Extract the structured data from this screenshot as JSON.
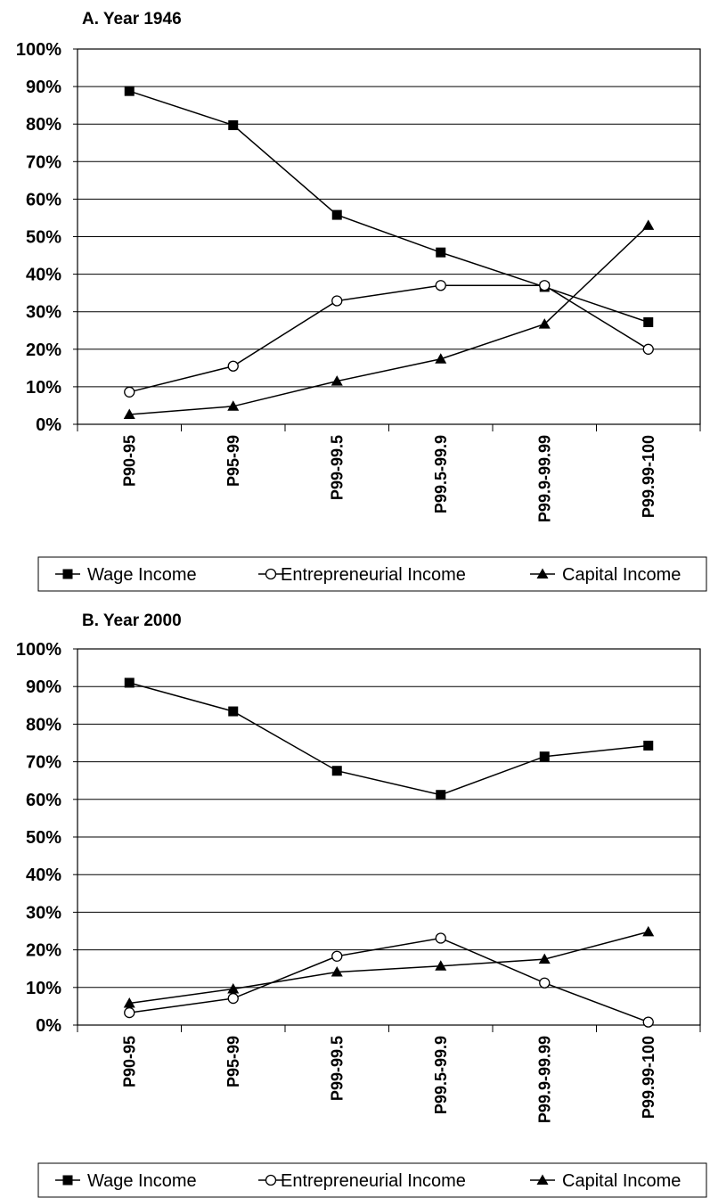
{
  "chart_data": [
    {
      "type": "line",
      "title": "A. Year 1946",
      "categories": [
        "P90-95",
        "P95-99",
        "P99-99.5",
        "P99.5-99.9",
        "P99.9-99.99",
        "P99.99-100"
      ],
      "ylim": [
        0,
        100
      ],
      "yticks": [
        "0%",
        "10%",
        "20%",
        "30%",
        "40%",
        "50%",
        "60%",
        "70%",
        "80%",
        "90%",
        "100%"
      ],
      "grid": true,
      "legend_position": "bottom",
      "series": [
        {
          "name": "Wage Income",
          "marker": "square",
          "values": [
            88.8,
            79.7,
            55.8,
            45.8,
            36.6,
            27.2
          ]
        },
        {
          "name": "Entrepreneurial Income",
          "marker": "circle",
          "values": [
            8.6,
            15.5,
            32.9,
            37.0,
            37.0,
            20.0
          ]
        },
        {
          "name": "Capital Income",
          "marker": "triangle",
          "values": [
            2.6,
            4.8,
            11.5,
            17.4,
            26.7,
            53.0
          ]
        }
      ]
    },
    {
      "type": "line",
      "title": "B. Year 2000",
      "categories": [
        "P90-95",
        "P95-99",
        "P99-99.5",
        "P99.5-99.9",
        "P99.9-99.99",
        "P99.99-100"
      ],
      "ylim": [
        0,
        100
      ],
      "yticks": [
        "0%",
        "10%",
        "20%",
        "30%",
        "40%",
        "50%",
        "60%",
        "70%",
        "80%",
        "90%",
        "100%"
      ],
      "grid": true,
      "legend_position": "bottom",
      "series": [
        {
          "name": "Wage Income",
          "marker": "square",
          "values": [
            91.0,
            83.4,
            67.6,
            61.2,
            71.4,
            74.3
          ]
        },
        {
          "name": "Entrepreneurial Income",
          "marker": "circle",
          "values": [
            3.3,
            7.1,
            18.3,
            23.1,
            11.2,
            0.8
          ]
        },
        {
          "name": "Capital Income",
          "marker": "triangle",
          "values": [
            5.8,
            9.6,
            14.1,
            15.7,
            17.5,
            24.8
          ]
        }
      ]
    }
  ]
}
